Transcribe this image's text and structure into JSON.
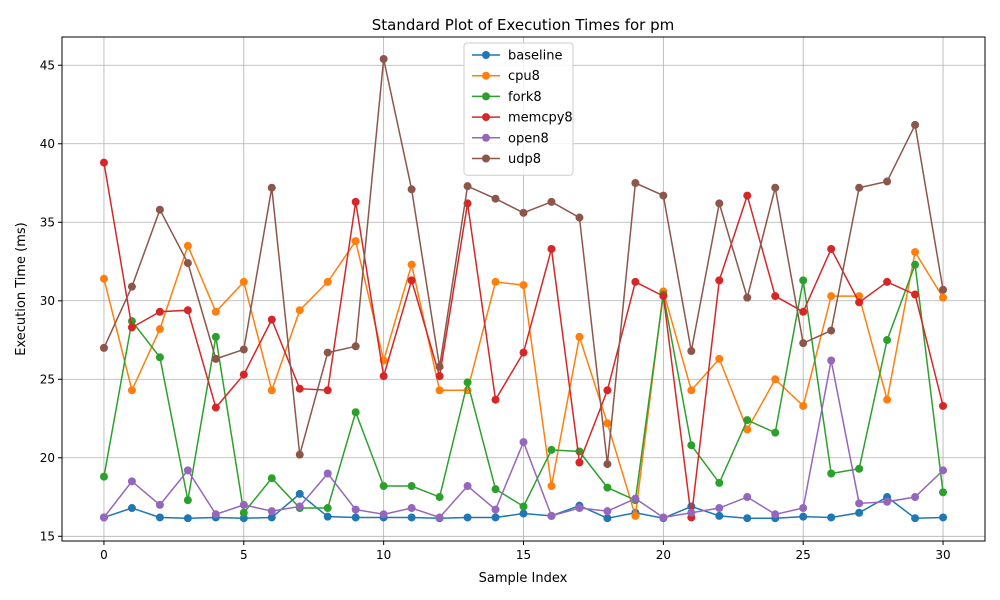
{
  "chart_data": {
    "type": "line",
    "title": "Standard Plot of Execution Times for pm",
    "xlabel": "Sample Index",
    "ylabel": "Execution Time (ms)",
    "xlim": [
      -1.5,
      31.5
    ],
    "ylim": [
      14.7,
      46.8
    ],
    "xticks": [
      0,
      5,
      10,
      15,
      20,
      25,
      30
    ],
    "yticks": [
      15,
      20,
      25,
      30,
      35,
      40,
      45
    ],
    "grid": true,
    "legend_position": "top-center",
    "x": [
      0,
      1,
      2,
      3,
      4,
      5,
      6,
      7,
      8,
      9,
      10,
      11,
      12,
      13,
      14,
      15,
      16,
      17,
      18,
      19,
      20,
      21,
      22,
      23,
      24,
      25,
      26,
      27,
      28,
      29,
      30
    ],
    "series": [
      {
        "name": "baseline",
        "color": "#1f77b4",
        "values": [
          16.2,
          16.8,
          16.2,
          16.15,
          16.2,
          16.15,
          16.2,
          17.7,
          16.25,
          16.2,
          16.2,
          16.2,
          16.15,
          16.2,
          16.2,
          16.45,
          16.3,
          16.95,
          16.15,
          16.5,
          16.15,
          16.9,
          16.3,
          16.15,
          16.15,
          16.25,
          16.2,
          16.5,
          17.5,
          16.15,
          16.2
        ]
      },
      {
        "name": "cpu8",
        "color": "#ff7f0e",
        "values": [
          31.4,
          24.3,
          28.2,
          33.5,
          29.3,
          31.2,
          24.3,
          29.4,
          31.2,
          33.8,
          26.2,
          32.3,
          24.3,
          24.3,
          31.2,
          31.0,
          18.2,
          27.7,
          22.2,
          16.3,
          30.6,
          24.3,
          26.3,
          21.8,
          25.0,
          23.3,
          30.3,
          30.3,
          23.7,
          33.1,
          30.2
        ]
      },
      {
        "name": "fork8",
        "color": "#2ca02c",
        "values": [
          18.8,
          28.7,
          26.4,
          17.3,
          27.7,
          16.5,
          18.7,
          16.8,
          16.8,
          22.9,
          18.2,
          18.2,
          17.5,
          24.8,
          18.0,
          16.9,
          20.5,
          20.4,
          18.1,
          17.3,
          30.4,
          20.8,
          18.4,
          22.4,
          21.6,
          31.3,
          19.0,
          19.3,
          27.5,
          32.3,
          17.8
        ]
      },
      {
        "name": "memcpy8",
        "color": "#d62728",
        "values": [
          38.8,
          28.3,
          29.3,
          29.4,
          23.2,
          25.3,
          28.8,
          24.4,
          24.3,
          36.3,
          25.2,
          31.3,
          25.2,
          36.2,
          23.7,
          26.7,
          33.3,
          19.7,
          24.3,
          31.2,
          30.3,
          16.2,
          31.3,
          36.7,
          30.3,
          29.3,
          33.3,
          29.9,
          31.2,
          30.4,
          23.3
        ]
      },
      {
        "name": "open8",
        "color": "#9467bd",
        "values": [
          16.2,
          18.5,
          17.0,
          19.2,
          16.4,
          17.0,
          16.6,
          16.9,
          19.0,
          16.7,
          16.4,
          16.8,
          16.2,
          18.2,
          16.7,
          21.0,
          16.3,
          16.8,
          16.6,
          17.4,
          16.2,
          16.5,
          16.8,
          17.5,
          16.4,
          16.8,
          26.2,
          17.1,
          17.2,
          17.5,
          19.2
        ]
      },
      {
        "name": "udp8",
        "color": "#8c564b",
        "values": [
          27.0,
          30.9,
          35.8,
          32.4,
          26.3,
          26.9,
          37.2,
          20.2,
          26.7,
          27.1,
          45.4,
          37.1,
          25.8,
          37.3,
          36.5,
          35.6,
          36.3,
          35.3,
          19.6,
          37.5,
          36.7,
          26.8,
          36.2,
          30.2,
          37.2,
          27.3,
          28.1,
          37.2,
          37.6,
          41.2,
          30.7
        ]
      }
    ]
  }
}
